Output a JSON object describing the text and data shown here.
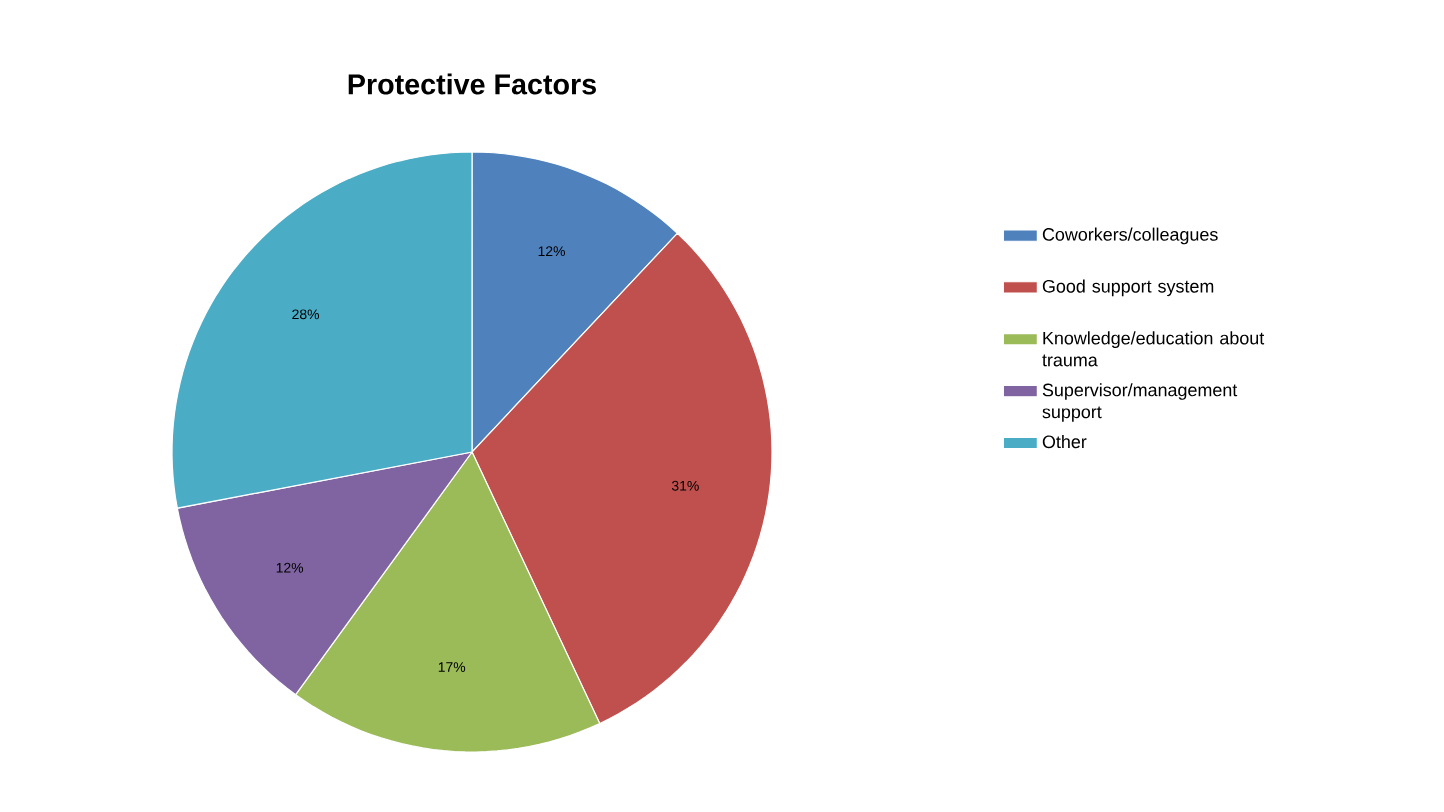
{
  "chart_data": {
    "type": "pie",
    "title": "Protective Factors",
    "categories": [
      "Coworkers/colleagues",
      "Good support system",
      "Knowledge/education about trauma",
      "Supervisor/management support",
      "Other"
    ],
    "values": [
      12,
      31,
      17,
      12,
      28
    ],
    "colors": [
      "#4f81bd",
      "#c0504d",
      "#9bbb59",
      "#8064a2",
      "#4bacc6"
    ],
    "value_labels": [
      "12%",
      "31%",
      "17%",
      "12%",
      "28%"
    ],
    "legend": "right"
  }
}
